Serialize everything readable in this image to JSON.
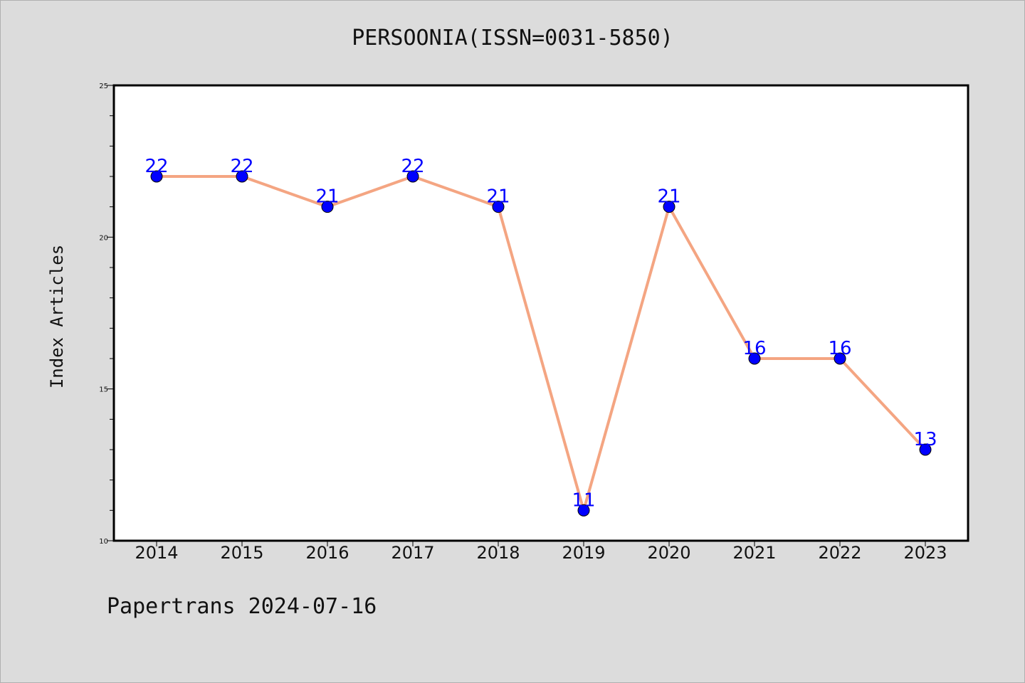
{
  "chart_data": {
    "type": "line",
    "title": "PERSOONIA(ISSN=0031-5850)",
    "xlabel": "",
    "ylabel": "Index Articles",
    "categories": [
      "2014",
      "2015",
      "2016",
      "2017",
      "2018",
      "2019",
      "2020",
      "2021",
      "2022",
      "2023"
    ],
    "series": [
      {
        "values": [
          22,
          22,
          21,
          22,
          21,
          11,
          21,
          16,
          16,
          13
        ]
      }
    ],
    "ylim": [
      10,
      25
    ],
    "yticks": [
      "10",
      "15",
      "20",
      "25"
    ],
    "grid": false,
    "line_color": "#f4a582",
    "marker_color": "#0000ff",
    "label_color": "#0000ff"
  },
  "footer": {
    "note": "Papertrans 2024-07-16"
  }
}
